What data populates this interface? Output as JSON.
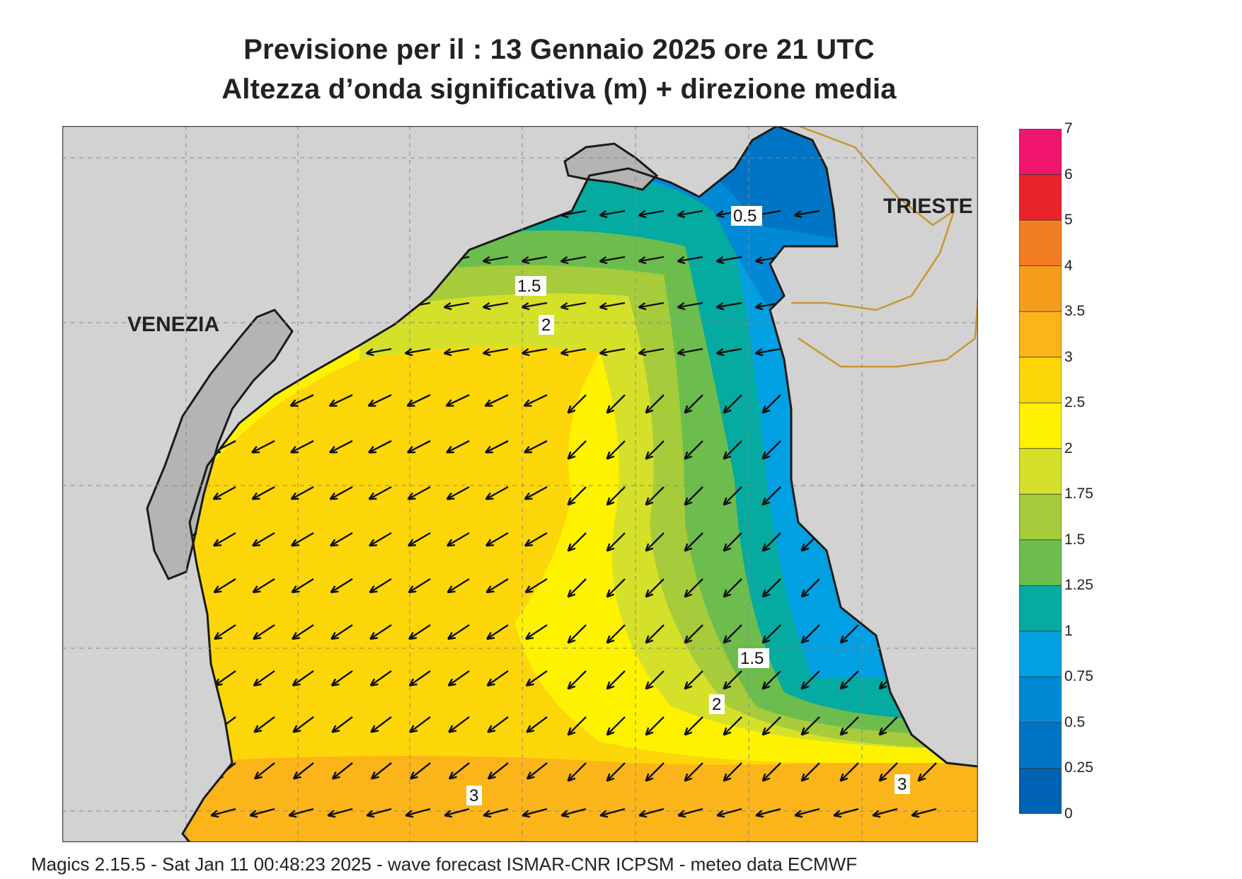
{
  "title": {
    "line1": "Previsione per il  :  13  Gennaio  2025   ore 21 UTC",
    "line2": "Altezza d’onda significativa (m) + direzione media"
  },
  "map": {
    "cities": {
      "venezia": "VENEZIA",
      "trieste": "TRIESTE"
    },
    "contour_labels": [
      "0.5",
      "1.5",
      "2",
      "1.5",
      "2",
      "3",
      "3"
    ]
  },
  "colorbar": {
    "ticks": [
      "7",
      "6",
      "5",
      "4",
      "3.5",
      "3",
      "2.5",
      "2",
      "1.75",
      "1.5",
      "1.25",
      "1",
      "0.75",
      "0.5",
      "0.25",
      "0"
    ],
    "colors": [
      "#f0166e",
      "#e8232a",
      "#f37d22",
      "#f79d1e",
      "#fbb41a",
      "#fdd60a",
      "#fff200",
      "#d5e02a",
      "#a6cc3b",
      "#6cbd4d",
      "#05aaa0",
      "#00a0e3",
      "#0189d6",
      "#0075c6",
      "#0062b2"
    ]
  },
  "colors": {
    "land": "#d2d2d2",
    "land_dark": "#b4b4b4",
    "coast": "#1a1a1a",
    "border": "#c89632"
  },
  "footer": "Magics 2.15.5 - Sat Jan 11 00:48:23 2025 - wave forecast  ISMAR-CNR  ICPSM - meteo data   ECMWF"
}
